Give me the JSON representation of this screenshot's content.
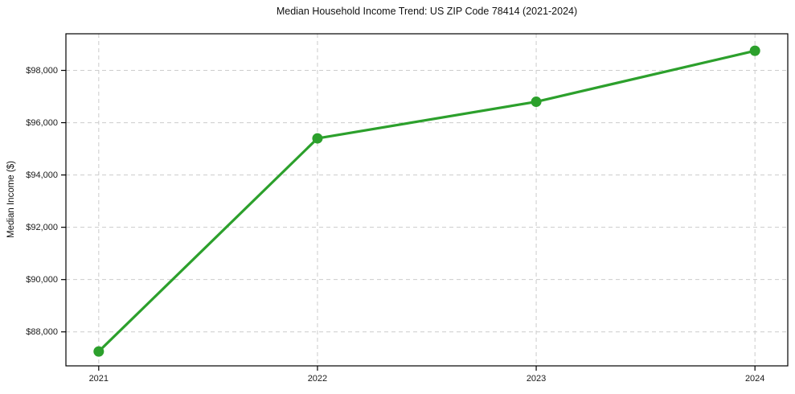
{
  "chart_data": {
    "type": "line",
    "title": "Median Household Income Trend: US ZIP Code 78414 (2021-2024)",
    "xlabel": "",
    "ylabel": "Median Income ($)",
    "x": [
      2021,
      2022,
      2023,
      2024
    ],
    "values": [
      87250,
      95400,
      96800,
      98750
    ],
    "series_name": "Median Household Income",
    "xlim": [
      2020.85,
      2024.15
    ],
    "ylim": [
      86700,
      99400
    ],
    "xticks": [
      2021,
      2022,
      2023,
      2024
    ],
    "xtick_labels": [
      "2021",
      "2022",
      "2023",
      "2024"
    ],
    "yticks": [
      88000,
      90000,
      92000,
      94000,
      96000,
      98000
    ],
    "ytick_labels": [
      "$88,000",
      "$90,000",
      "$92,000",
      "$94,000",
      "$96,000",
      "$98,000"
    ],
    "grid": "on",
    "grid_style": "dashed",
    "legend": "none",
    "line_color": "#2ca02c",
    "marker": "circle",
    "grid_color": "#cccccc",
    "axis_color": "#000000",
    "background_color": "#ffffff"
  }
}
